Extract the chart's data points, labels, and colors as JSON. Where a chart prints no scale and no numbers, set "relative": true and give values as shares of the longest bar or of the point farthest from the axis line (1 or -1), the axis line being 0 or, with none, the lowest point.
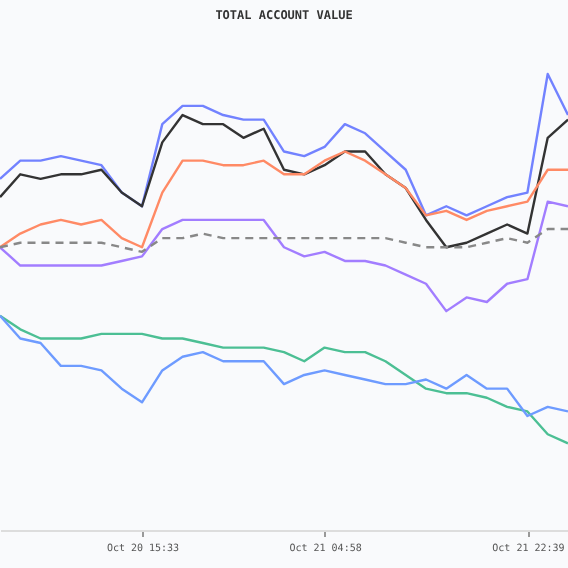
{
  "chart_data": {
    "type": "line",
    "title": "TOTAL ACCOUNT VALUE",
    "relative": true,
    "marker": "none",
    "categories": [
      null,
      null,
      null,
      null,
      null,
      null,
      null,
      "Oct 20 15:33",
      null,
      null,
      null,
      null,
      null,
      null,
      null,
      null,
      "Oct 21 04:58",
      null,
      null,
      null,
      null,
      null,
      null,
      null,
      null,
      null,
      "Oct 21 22:39",
      null,
      null
    ],
    "series": [
      {
        "color": "#7282ff",
        "values": [
          0.77,
          0.81,
          0.81,
          0.82,
          0.81,
          0.8,
          0.74,
          0.71,
          0.89,
          0.93,
          0.93,
          0.91,
          0.9,
          0.9,
          0.83,
          0.82,
          0.84,
          0.89,
          0.87,
          0.83,
          0.79,
          0.69,
          0.71,
          0.69,
          0.71,
          0.73,
          0.74,
          1.0,
          0.91
        ]
      },
      {
        "color": "#333333",
        "values": [
          0.73,
          0.78,
          0.77,
          0.78,
          0.78,
          0.79,
          0.74,
          0.71,
          0.85,
          0.91,
          0.89,
          0.89,
          0.86,
          0.88,
          0.79,
          0.78,
          0.8,
          0.83,
          0.83,
          0.78,
          0.75,
          0.68,
          0.62,
          0.63,
          0.65,
          0.67,
          0.65,
          0.86,
          0.9
        ]
      },
      {
        "color": "#ff8a65",
        "values": [
          0.62,
          0.65,
          0.67,
          0.68,
          0.67,
          0.68,
          0.64,
          0.62,
          0.74,
          0.81,
          0.81,
          0.8,
          0.8,
          0.81,
          0.78,
          0.78,
          0.81,
          0.83,
          0.81,
          0.78,
          0.75,
          0.69,
          0.7,
          0.68,
          0.7,
          0.71,
          0.72,
          0.79,
          0.79
        ]
      },
      {
        "color": "#a27dff",
        "values": [
          0.62,
          0.58,
          0.58,
          0.58,
          0.58,
          0.58,
          0.59,
          0.6,
          0.66,
          0.68,
          0.68,
          0.68,
          0.68,
          0.68,
          0.62,
          0.6,
          0.61,
          0.59,
          0.59,
          0.58,
          0.56,
          0.54,
          0.48,
          0.51,
          0.5,
          0.54,
          0.55,
          0.72,
          0.71
        ]
      },
      {
        "color": "#888888",
        "line_style": "dashed",
        "values": [
          0.62,
          0.63,
          0.63,
          0.63,
          0.63,
          0.63,
          0.62,
          0.61,
          0.64,
          0.64,
          0.65,
          0.64,
          0.64,
          0.64,
          0.64,
          0.64,
          0.64,
          0.64,
          0.64,
          0.64,
          0.63,
          0.62,
          0.62,
          0.62,
          0.63,
          0.64,
          0.63,
          0.66,
          0.66
        ]
      },
      {
        "color": "#4cbf94",
        "values": [
          0.47,
          0.44,
          0.42,
          0.42,
          0.42,
          0.43,
          0.43,
          0.43,
          0.42,
          0.42,
          0.41,
          0.4,
          0.4,
          0.4,
          0.39,
          0.37,
          0.4,
          0.39,
          0.39,
          0.37,
          0.34,
          0.31,
          0.3,
          0.3,
          0.29,
          0.27,
          0.26,
          0.21,
          0.19
        ]
      },
      {
        "color": "#6e9bff",
        "values": [
          0.47,
          0.42,
          0.41,
          0.36,
          0.36,
          0.35,
          0.31,
          0.28,
          0.35,
          0.38,
          0.39,
          0.37,
          0.37,
          0.37,
          0.32,
          0.34,
          0.35,
          0.34,
          0.33,
          0.32,
          0.32,
          0.33,
          0.31,
          0.34,
          0.31,
          0.31,
          0.25,
          0.27,
          0.26
        ]
      }
    ]
  }
}
